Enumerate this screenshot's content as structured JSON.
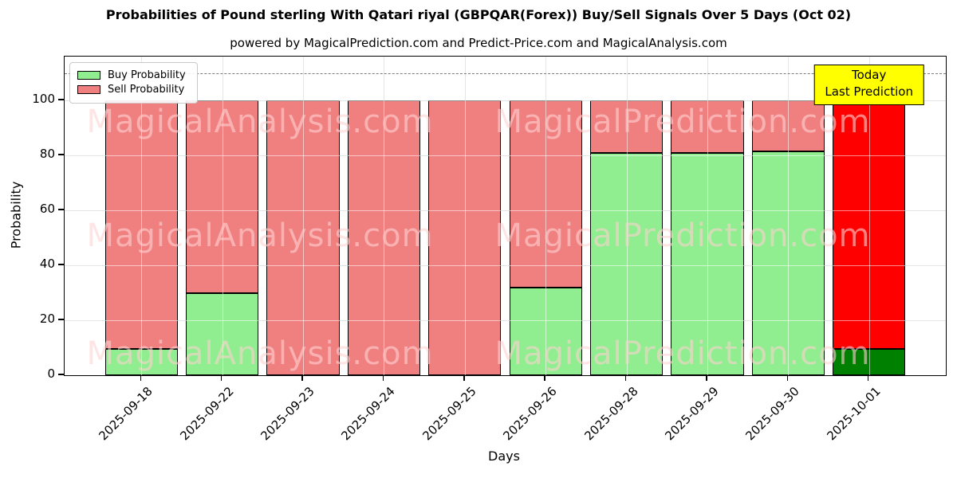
{
  "title": "Probabilities of Pound sterling With Qatari riyal (GBPQAR(Forex)) Buy/Sell Signals Over 5 Days (Oct 02)",
  "subtitle": "powered by MagicalPrediction.com and Predict-Price.com and MagicalAnalysis.com",
  "axes": {
    "ylabel": "Probability",
    "xlabel": "Days",
    "yticks": [
      0,
      20,
      40,
      60,
      80,
      100
    ],
    "ylim": [
      0,
      116
    ],
    "dashed_line_y": 110,
    "grid": true
  },
  "legend": {
    "position": "upper-left",
    "items": [
      {
        "label": "Buy Probability",
        "color": "#90EE90"
      },
      {
        "label": "Sell Probability",
        "color": "#F08080"
      }
    ]
  },
  "annotation_box": {
    "lines": [
      "Today",
      "Last Prediction"
    ],
    "bg_color": "#FFFF00",
    "border_color": "#000000"
  },
  "watermarks": {
    "left_text": "MagicalAnalysis.com",
    "right_text": "MagicalPrediction.com"
  },
  "chart_data": {
    "type": "bar",
    "stacked": true,
    "title": "Probabilities of Pound sterling With Qatari riyal (GBPQAR(Forex)) Buy/Sell Signals Over 5 Days (Oct 02)",
    "xlabel": "Days",
    "ylabel": "Probability",
    "ylim": [
      0,
      116
    ],
    "categories": [
      "2025-09-18",
      "2025-09-22",
      "2025-09-23",
      "2025-09-24",
      "2025-09-25",
      "2025-09-26",
      "2025-09-28",
      "2025-09-29",
      "2025-09-30",
      "2025-10-01"
    ],
    "series": [
      {
        "name": "Buy Probability",
        "values": [
          9.5,
          30,
          0,
          0,
          0,
          32,
          81,
          81,
          81.5,
          9.5
        ]
      },
      {
        "name": "Sell Probability",
        "values": [
          90.5,
          70,
          100,
          100,
          100,
          68,
          19,
          19,
          18.5,
          90.5
        ]
      }
    ],
    "colors": {
      "buy": "#90EE90",
      "sell": "#F08080",
      "buy_today": "#008000",
      "sell_today": "#FF0000",
      "bar_edge": "#000000"
    },
    "today_index": 9,
    "legend_position": "upper left",
    "dashed_line_y": 110
  }
}
